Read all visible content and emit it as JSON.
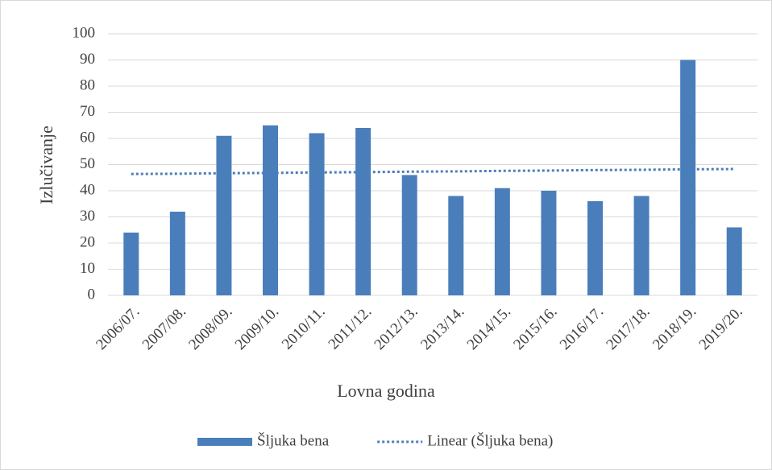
{
  "chart_data": {
    "type": "bar",
    "x_label": "Lovna godina",
    "y_label": "Izlučivanje",
    "categories": [
      "2006/07.",
      "2007/08.",
      "2008/09.",
      "2009/10.",
      "2010/11.",
      "2011/12.",
      "2012/13.",
      "2013/14.",
      "2014/15.",
      "2015/16.",
      "2016/17.",
      "2017/18.",
      "2018/19.",
      "2019/20."
    ],
    "series": [
      {
        "name": "Šljuka bena",
        "type": "bar",
        "color": "#4a7ebb",
        "values": [
          24,
          32,
          61,
          65,
          62,
          64,
          46,
          38,
          41,
          40,
          36,
          38,
          90,
          26
        ]
      },
      {
        "name": "Linear (Šljuka bena)",
        "type": "line",
        "dash": "dotted",
        "color": "#4a7ebb",
        "values": [
          46.4,
          46.5,
          46.7,
          46.8,
          47.0,
          47.1,
          47.3,
          47.4,
          47.6,
          47.7,
          47.9,
          48.0,
          48.2,
          48.3
        ]
      }
    ],
    "ylim": [
      0,
      100
    ],
    "yticks": [
      0,
      10,
      20,
      30,
      40,
      50,
      60,
      70,
      80,
      90,
      100
    ],
    "grid": true,
    "legend": "bottom"
  }
}
